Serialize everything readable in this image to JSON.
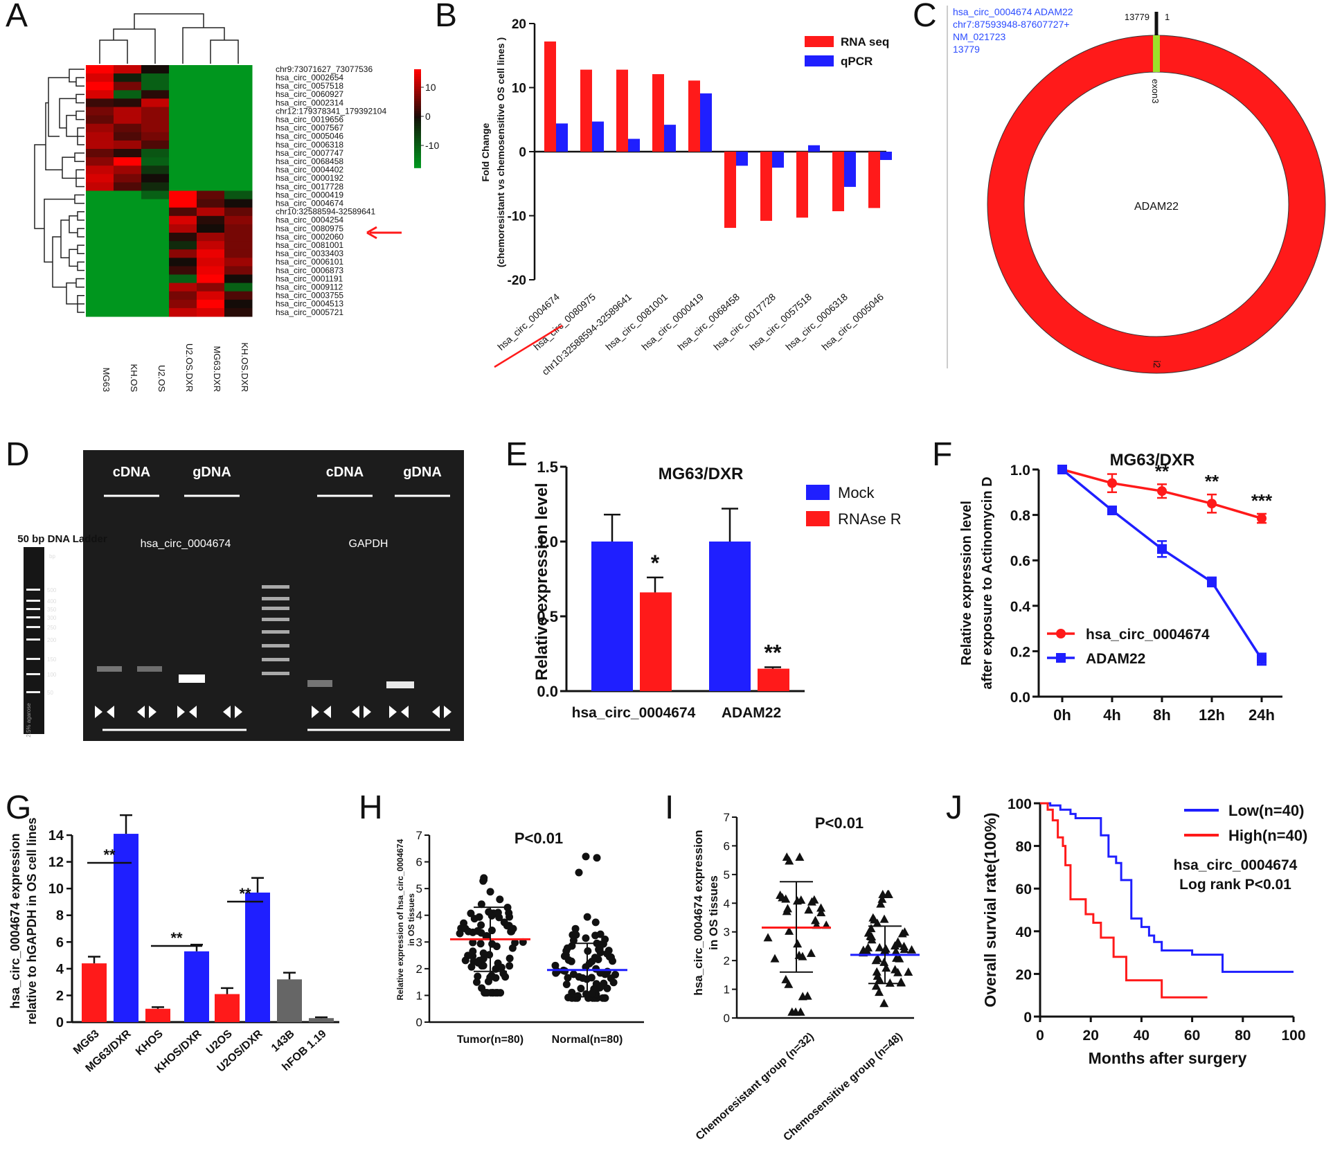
{
  "colors": {
    "red": "#ff1a1a",
    "blue": "#1f1fff",
    "gray": "#666666",
    "green": "#22a022",
    "black": "#111111"
  },
  "chart_data": [
    {
      "panel": "A",
      "type": "heatmap",
      "columns": [
        "MG63",
        "KH.OS",
        "U2.OS",
        "U2.OS.DXR",
        "MG63.DXR",
        "KH.OS.DXR"
      ],
      "rows": [
        "chr9:73071627_73077536",
        "hsa_circ_0002654",
        "hsa_circ_0057518",
        "hsa_circ_0060927",
        "hsa_circ_0002314",
        "chr12:179378341_179392104",
        "hsa_circ_0019656",
        "hsa_circ_0007567",
        "hsa_circ_0005046",
        "hsa_circ_0006318",
        "hsa_circ_0007747",
        "hsa_circ_0068458",
        "hsa_circ_0004402",
        "hsa_circ_0000192",
        "hsa_circ_0017728",
        "hsa_circ_0000419",
        "hsa_circ_0004674",
        "chr10:32588594-32589641",
        "hsa_circ_0004254",
        "hsa_circ_0080975",
        "hsa_circ_0002060",
        "hsa_circ_0081001",
        "hsa_circ_0033403",
        "hsa_circ_0006101",
        "hsa_circ_0006873",
        "hsa_circ_0001191",
        "hsa_circ_0009112",
        "hsa_circ_0003755",
        "hsa_circ_0004513",
        "hsa_circ_0005721"
      ],
      "values": [
        [
          12,
          9,
          0,
          -12,
          -12,
          -12
        ],
        [
          10,
          -1,
          -7,
          -12,
          -12,
          -12
        ],
        [
          12,
          5,
          -7,
          -12,
          -12,
          -12
        ],
        [
          10,
          -7,
          1,
          -12,
          -12,
          -12
        ],
        [
          2,
          1,
          9,
          -12,
          -12,
          -12
        ],
        [
          5,
          8,
          6,
          -12,
          -12,
          -12
        ],
        [
          4,
          8,
          6,
          -12,
          -12,
          -12
        ],
        [
          7,
          4,
          6,
          -12,
          -12,
          -12
        ],
        [
          8,
          3,
          5,
          -12,
          -12,
          -12
        ],
        [
          8,
          7,
          3,
          -12,
          -12,
          -12
        ],
        [
          4,
          1,
          -6,
          -12,
          -12,
          -12
        ],
        [
          6,
          12,
          -7,
          -12,
          -12,
          -12
        ],
        [
          9,
          7,
          -3,
          -12,
          -12,
          -12
        ],
        [
          10,
          5,
          0,
          -12,
          -12,
          -12
        ],
        [
          9,
          3,
          -2,
          -12,
          -12,
          -12
        ],
        [
          -12,
          -12,
          -7,
          12,
          4,
          -6
        ],
        [
          -12,
          -12,
          -12,
          12,
          3,
          0
        ],
        [
          -12,
          -12,
          -12,
          3,
          8,
          4
        ],
        [
          -12,
          -12,
          -12,
          10,
          1,
          6
        ],
        [
          -12,
          -12,
          -12,
          8,
          0,
          5
        ],
        [
          -12,
          -12,
          -12,
          1,
          7,
          5
        ],
        [
          -12,
          -12,
          -12,
          -2,
          9,
          5
        ],
        [
          -12,
          -12,
          -12,
          6,
          11,
          5
        ],
        [
          -12,
          -12,
          -12,
          0,
          10,
          7
        ],
        [
          -12,
          -12,
          -12,
          2,
          11,
          5
        ],
        [
          -12,
          -12,
          -12,
          -7,
          12,
          0
        ],
        [
          -12,
          -12,
          -12,
          8,
          6,
          -7
        ],
        [
          -12,
          -12,
          -12,
          5,
          10,
          3
        ],
        [
          -12,
          -12,
          -12,
          6,
          12,
          0
        ],
        [
          -12,
          -12,
          -12,
          9,
          10,
          1
        ]
      ],
      "colorbar": [
        "10",
        "0",
        "-10"
      ]
    },
    {
      "panel": "B",
      "type": "bar",
      "ylabel": "Fold Change\n(chemoresistant vs chemosensitive OS cell lines  )",
      "categories": [
        "hsa_circ_0004674",
        "hsa_circ_0080975",
        "chr10:32588594-32589641",
        "hsa_circ_0081001",
        "hsa_circ_0000419",
        "hsa_circ_0068458",
        "hsa_circ_0017728",
        "hsa_circ_0057518",
        "hsa_circ_0006318",
        "hsa_circ_0005046"
      ],
      "series": [
        {
          "name": "RNA seq",
          "values": [
            17.2,
            12.8,
            12.8,
            12.1,
            11.1,
            -11.9,
            -10.8,
            -10.3,
            -9.3,
            -8.8
          ]
        },
        {
          "name": "qPCR",
          "values": [
            4.4,
            4.7,
            2.0,
            4.2,
            9.1,
            -2.2,
            -2.5,
            1.0,
            -5.5,
            -1.3
          ]
        }
      ],
      "ylim": [
        -20,
        20
      ],
      "yticks": [
        "20",
        "10",
        "0",
        "-10",
        "-20"
      ]
    },
    {
      "panel": "C",
      "type": "diagram",
      "info": [
        "hsa_circ_0004674  ADAM22",
        "chr7:87593948-87607727+",
        "NM_021723",
        "13779"
      ],
      "top_labels": [
        "13779",
        "1"
      ],
      "exon_label": "exon3",
      "center_label": "ADAM22",
      "bottom_label": "i2"
    },
    {
      "panel": "D",
      "type": "gel",
      "ladder_title": "50 bp DNA Ladder",
      "ladder_unit": "bp",
      "ladder_marks": [
        "500",
        "400",
        "350",
        "300",
        "250",
        "200",
        "150",
        "100",
        "50"
      ],
      "ladder_side": "2.5% agarose",
      "headers": [
        "cDNA",
        "gDNA",
        "cDNA",
        "gDNA"
      ],
      "targets": [
        "hsa_circ_0004674",
        "GAPDH"
      ]
    },
    {
      "panel": "E",
      "type": "bar",
      "title": "MG63/DXR",
      "ylabel": "Relative expression level",
      "categories": [
        "hsa_circ_0004674",
        "ADAM22"
      ],
      "series": [
        {
          "name": "Mock",
          "values": [
            1.0,
            1.0
          ],
          "errors": [
            0.18,
            0.22
          ]
        },
        {
          "name": "RNAse R",
          "values": [
            0.66,
            0.15
          ],
          "errors": [
            0.1,
            0.01
          ]
        }
      ],
      "significance": [
        "*",
        "**"
      ],
      "ylim": [
        0,
        1.5
      ],
      "yticks": [
        "0.0",
        "0.5",
        "1.0",
        "1.5"
      ]
    },
    {
      "panel": "F",
      "type": "line",
      "title": "MG63/DXR",
      "ylabel": "Relative expression level\nafter exposure to Actinomycin D",
      "x": [
        "0h",
        "4h",
        "8h",
        "12h",
        "24h"
      ],
      "series": [
        {
          "name": "hsa_circ_0004674",
          "values": [
            1.0,
            0.94,
            0.905,
            0.85,
            0.785
          ],
          "errors": [
            0,
            0.04,
            0.03,
            0.04,
            0.02
          ]
        },
        {
          "name": "ADAM22",
          "values": [
            1.0,
            0.82,
            0.65,
            0.505,
            0.165
          ],
          "errors": [
            0,
            0.01,
            0.035,
            0.02,
            0.025
          ]
        }
      ],
      "significance": [
        "",
        "",
        "**",
        "**",
        "***"
      ],
      "ylim": [
        0,
        1.0
      ],
      "yticks": [
        "0.0",
        "0.2",
        "0.4",
        "0.6",
        "0.8",
        "1.0"
      ]
    },
    {
      "panel": "G",
      "type": "bar",
      "ylabel": "hsa_circ_0004674 expression\nrelative to hGAPDH in OS cell lines",
      "categories": [
        "MG63",
        "MG63/DXR",
        "KHOS",
        "KHOS/DXR",
        "U2OS",
        "U2OS/DXR",
        "143B",
        "hFOB 1.19"
      ],
      "values": [
        4.4,
        14.1,
        1.0,
        5.3,
        2.1,
        9.7,
        3.2,
        0.3
      ],
      "errors": [
        0.5,
        1.4,
        0.12,
        0.5,
        0.45,
        1.1,
        0.5,
        0.06
      ],
      "significance": [
        "**",
        "**",
        "**"
      ],
      "ylim": [
        0,
        14
      ],
      "yticks": [
        "0",
        "2",
        "4",
        "6",
        "8",
        "10",
        "12",
        "14"
      ]
    },
    {
      "panel": "H",
      "type": "scatter",
      "annotation": "P<0.01",
      "ylabel": "Relative expression of hsa_circ_0004674\nin OS tissues",
      "categories": [
        "Tumor(n=80)",
        "Normal(n=80)"
      ],
      "mean": [
        3.1,
        1.95
      ],
      "sd_low": [
        1.9,
        0.95
      ],
      "sd_high": [
        4.3,
        2.95
      ],
      "ylim": [
        0,
        7
      ],
      "yticks": [
        "0",
        "1",
        "2",
        "3",
        "4",
        "5",
        "6",
        "7"
      ]
    },
    {
      "panel": "I",
      "type": "scatter",
      "annotation": "P<0.01",
      "ylabel": "hsa_circ_0004674 expression\nin OS tissues",
      "categories": [
        "Chemoresistant group (n=32)",
        "Chemosensitive group (n=48)"
      ],
      "mean": [
        3.15,
        2.2
      ],
      "sd_low": [
        1.6,
        1.2
      ],
      "sd_high": [
        4.75,
        3.2
      ],
      "ylim": [
        0,
        7
      ],
      "yticks": [
        "0",
        "1",
        "2",
        "3",
        "4",
        "5",
        "6",
        "7"
      ]
    },
    {
      "panel": "J",
      "type": "line",
      "ylabel": "Overall survial rate(100%)",
      "xlabel": "Months after surgery",
      "series": [
        {
          "name": "Low(n=40)",
          "points": [
            [
              0,
              100
            ],
            [
              4,
              100
            ],
            [
              4,
              99
            ],
            [
              8,
              99
            ],
            [
              8,
              97
            ],
            [
              12,
              97
            ],
            [
              12,
              95
            ],
            [
              14,
              95
            ],
            [
              14,
              93
            ],
            [
              24,
              93
            ],
            [
              24,
              85
            ],
            [
              27,
              85
            ],
            [
              27,
              75
            ],
            [
              30,
              75
            ],
            [
              30,
              72
            ],
            [
              32,
              72
            ],
            [
              32,
              64
            ],
            [
              36,
              64
            ],
            [
              36,
              46
            ],
            [
              40,
              46
            ],
            [
              40,
              42
            ],
            [
              43,
              42
            ],
            [
              43,
              38
            ],
            [
              45,
              38
            ],
            [
              45,
              35
            ],
            [
              48,
              35
            ],
            [
              48,
              31
            ],
            [
              60,
              31
            ],
            [
              60,
              29
            ],
            [
              72,
              29
            ],
            [
              72,
              21
            ],
            [
              100,
              21
            ]
          ]
        },
        {
          "name": "High(n=40)",
          "points": [
            [
              0,
              100
            ],
            [
              3,
              100
            ],
            [
              3,
              97
            ],
            [
              5,
              97
            ],
            [
              5,
              92
            ],
            [
              7,
              92
            ],
            [
              7,
              84
            ],
            [
              9,
              84
            ],
            [
              9,
              80
            ],
            [
              10,
              80
            ],
            [
              10,
              71
            ],
            [
              12,
              71
            ],
            [
              12,
              55
            ],
            [
              18,
              55
            ],
            [
              18,
              48
            ],
            [
              21,
              48
            ],
            [
              21,
              44
            ],
            [
              24,
              44
            ],
            [
              24,
              37
            ],
            [
              29,
              37
            ],
            [
              29,
              28
            ],
            [
              34,
              28
            ],
            [
              34,
              17
            ],
            [
              48,
              17
            ],
            [
              48,
              9
            ],
            [
              66,
              9
            ]
          ]
        }
      ],
      "annotation": [
        "hsa_circ_0004674",
        "Log rank P<0.01"
      ],
      "xlim": [
        0,
        100
      ],
      "ylim": [
        0,
        100
      ],
      "xticks": [
        "0",
        "20",
        "40",
        "60",
        "80",
        "100"
      ],
      "yticks": [
        "0",
        "20",
        "40",
        "60",
        "80",
        "100"
      ]
    }
  ]
}
